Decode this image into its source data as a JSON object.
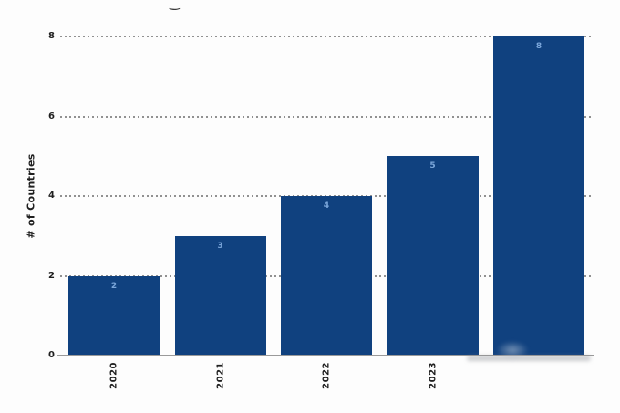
{
  "page": {
    "background": "#fdfdfd"
  },
  "header": {
    "cropped_title_fragment": "‿"
  },
  "colors": {
    "bar": "#10417f",
    "value_label": "#7ba6da",
    "grid": "#7e7e7e",
    "axis_line": "#9a9a9a",
    "axis_text": "#1f1f1f"
  },
  "chart_data": {
    "type": "bar",
    "categories": [
      "2020",
      "2021",
      "2022",
      "2023",
      ""
    ],
    "values": [
      2,
      3,
      4,
      5,
      8
    ],
    "title": "",
    "xlabel": "",
    "ylabel": "# of Countries",
    "yticks": [
      0,
      2,
      4,
      6,
      8
    ],
    "ylim": [
      0,
      8
    ],
    "grid": "horizontal dashed",
    "legend_position": "none",
    "value_labels_inside_bars": true,
    "x_tick_rotation_deg": 90,
    "notes": "fifth bar has no visible x-axis label"
  }
}
